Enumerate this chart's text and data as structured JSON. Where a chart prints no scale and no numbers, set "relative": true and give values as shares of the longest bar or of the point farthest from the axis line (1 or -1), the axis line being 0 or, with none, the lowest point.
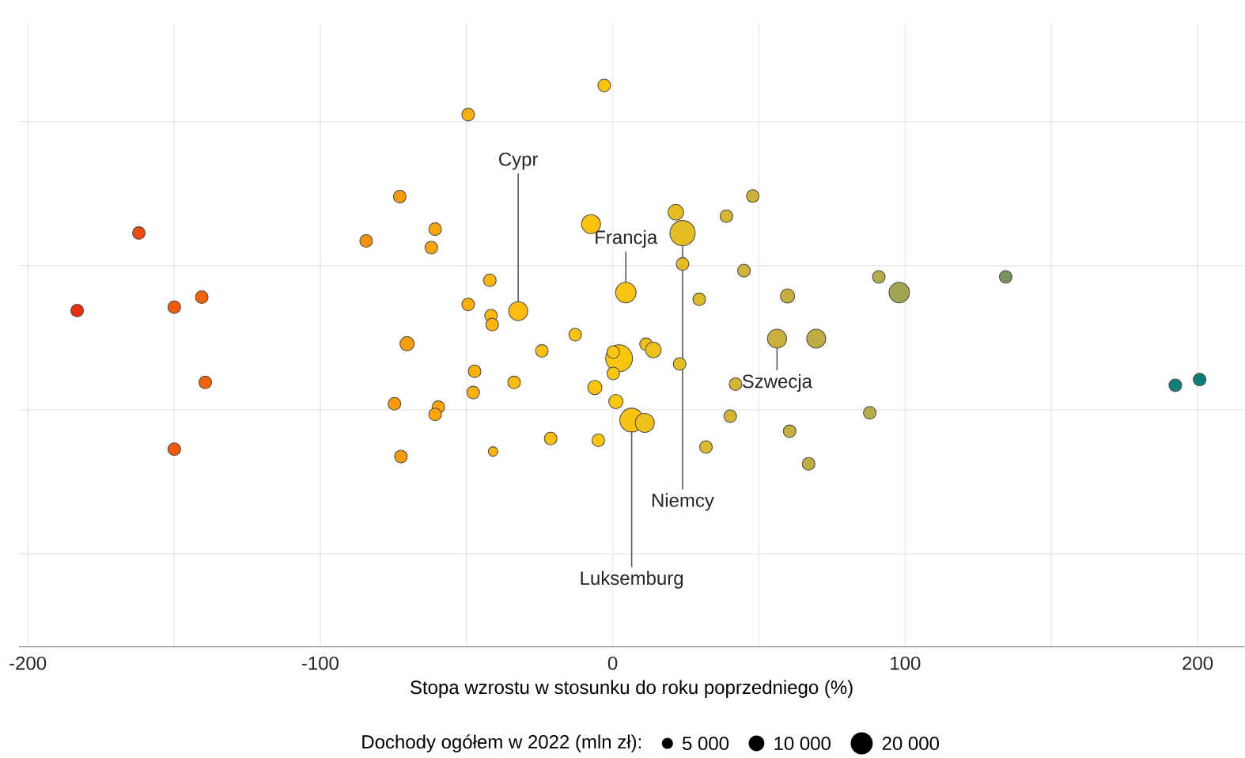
{
  "chart_data": {
    "type": "bubble",
    "relative": true,
    "xlabel": "Stopa wzrostu w stosunku do roku poprzedniego (%)",
    "legend_title": "Dochody ogółem w 2022 (mln zł):",
    "grid": true,
    "xlim": [
      -203,
      216
    ],
    "xticks": [
      -200,
      {
        "value": -150,
        "label": null
      },
      -100,
      {
        "value": -50,
        "label": null
      },
      0,
      {
        "value": 50,
        "label": null
      },
      100,
      {
        "value": 150,
        "label": null
      },
      200
    ],
    "size_legend": [
      {
        "value": 5000,
        "label": "5 000"
      },
      {
        "value": 10000,
        "label": "10 000"
      },
      {
        "value": 20000,
        "label": "20 000"
      }
    ],
    "x": [
      -162.0,
      -183.1,
      -149.9,
      -140.5,
      -139.3,
      -149.9,
      -72.8,
      -84.3,
      -70.3,
      -74.6,
      -72.4,
      -2.9,
      -49.4,
      -60.7,
      -62.0,
      -7.4,
      21.6,
      23.9,
      38.9,
      47.9,
      23.9,
      44.9,
      29.6,
      59.8,
      4.5,
      -42.0,
      -49.4,
      -32.3,
      -41.6,
      -41.2,
      -12.8,
      -24.2,
      2.2,
      0.2,
      11.4,
      13.9,
      0.2,
      22.9,
      -47.2,
      -33.7,
      -6.1,
      42.0,
      56.2,
      69.6,
      -47.7,
      -59.6,
      -60.7,
      1.1,
      6.5,
      11.0,
      40.2,
      60.5,
      -21.2,
      -4.9,
      -40.9,
      31.9,
      67.0,
      91.0,
      98.0,
      134.4,
      87.9,
      192.4,
      200.7
    ],
    "values": [
      0.737,
      0.599,
      0.605,
      0.623,
      0.471,
      0.352,
      0.802,
      0.723,
      0.54,
      0.433,
      0.339,
      1,
      0.948,
      0.744,
      0.711,
      0.753,
      0.774,
      0.737,
      0.767,
      0.803,
      0.682,
      0.67,
      0.619,
      0.625,
      0.631,
      0.653,
      0.61,
      0.598,
      0.59,
      0.574,
      0.556,
      0.527,
      0.514,
      0.525,
      0.539,
      0.529,
      0.487,
      0.504,
      0.491,
      0.471,
      0.462,
      0.468,
      0.549,
      0.549,
      0.453,
      0.427,
      0.414,
      0.437,
      0.404,
      0.399,
      0.411,
      0.384,
      0.371,
      0.368,
      0.348,
      0.356,
      0.326,
      0.659,
      0.631,
      0.659,
      0.417,
      0.466,
      0.476
    ],
    "sizes": [
      6500,
      6500,
      6500,
      6500,
      6500,
      6500,
      6500,
      6500,
      8300,
      6500,
      6500,
      6500,
      6500,
      6500,
      6500,
      14700,
      10200,
      26100,
      6500,
      6500,
      6500,
      6500,
      6500,
      8300,
      17200,
      6500,
      6500,
      14700,
      6500,
      6500,
      6500,
      6500,
      29500,
      6500,
      6500,
      10200,
      6500,
      6500,
      6500,
      6500,
      8300,
      6500,
      14700,
      14700,
      6500,
      6500,
      6500,
      8300,
      23000,
      14700,
      6500,
      6500,
      6500,
      6500,
      3700,
      6500,
      6500,
      6500,
      17200,
      6500,
      6500,
      6500,
      6500
    ],
    "colors": [
      "#ee4a0c",
      "#e8300e",
      "#f05a0b",
      "#f2640b",
      "#f2640b",
      "#f05a0b",
      "#f99c0b",
      "#f8920b",
      "#f99e0b",
      "#f99a0b",
      "#f99c0b",
      "#fcc40f",
      "#fbae0c",
      "#faa60b",
      "#faa50b",
      "#fcc20f",
      "#e6be23",
      "#e4bd25",
      "#d5b634",
      "#cdb23a",
      "#e4bd25",
      "#d0b437",
      "#dcba2c",
      "#c6ae3f",
      "#f8c413",
      "#fbb50d",
      "#fbae0c",
      "#fcbb0e",
      "#fbb50d",
      "#fbb50d",
      "#fcc10f",
      "#fcbe0f",
      "#fac50f",
      "#fcc60f",
      "#f0c11a",
      "#eec01c",
      "#fcc60f",
      "#e5be24",
      "#fbb00c",
      "#fcbb0e",
      "#fcc30f",
      "#d2b536",
      "#c8af3e",
      "#bfac44",
      "#fbb00c",
      "#faa60b",
      "#faa60b",
      "#fbc60f",
      "#f6c314",
      "#f0c11a",
      "#d4b535",
      "#c6ae3f",
      "#fcbf0f",
      "#fcc40f",
      "#fbb50d",
      "#dab92e",
      "#c1ad42",
      "#b6ab4a",
      "#a0a553",
      "#7a9462",
      "#b9ac48",
      "#14807a",
      "#0a7b76"
    ],
    "annotations": [
      {
        "text": "Cypr",
        "x": -32.3,
        "y": 0.598
      },
      {
        "text": "Francja",
        "x": 4.5,
        "y": 0.631
      },
      {
        "text": "Niemcy",
        "x": 23.9,
        "y": 0.737
      },
      {
        "text": "Szwecja",
        "x": 56.2,
        "y": 0.549
      },
      {
        "text": "Luksemburg",
        "x": 6.5,
        "y": 0.404
      }
    ]
  }
}
